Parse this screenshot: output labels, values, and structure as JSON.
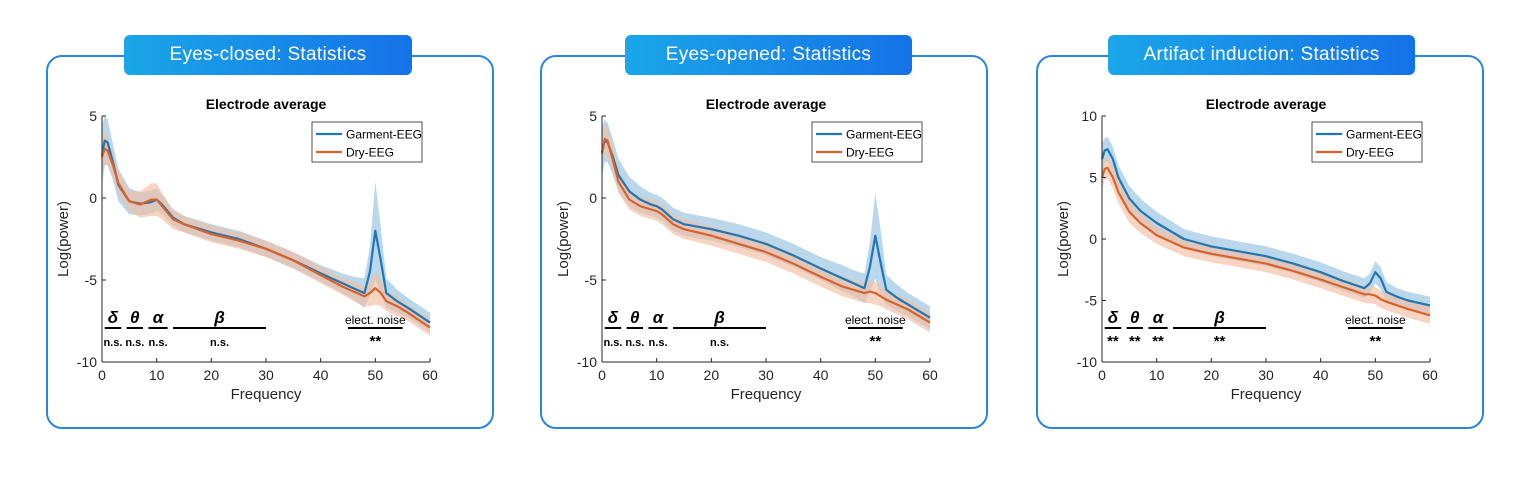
{
  "colors": {
    "garment": "#1f77b4",
    "garment_band": "#a9cde6",
    "dry": "#d9622b",
    "dry_band": "#f3bfa2",
    "banner_start": "#1aa6e8",
    "banner_end": "#1572e8",
    "panel_border": "#2b86d9"
  },
  "chart_data": [
    {
      "type": "line",
      "banner": "Eyes-closed: Statistics",
      "title": "Electrode average",
      "xlabel": "Frequency",
      "ylabel": "Log(power)",
      "xlim": [
        0,
        60
      ],
      "ylim": [
        -10,
        5
      ],
      "xticks": [
        "0",
        "10",
        "20",
        "30",
        "40",
        "50",
        "60"
      ],
      "yticks": [
        "5",
        "0",
        "-5",
        "-10"
      ],
      "ytick_values": [
        5,
        0,
        -5,
        -10
      ],
      "legend": [
        "Garment-EEG",
        "Dry-EEG"
      ],
      "series": [
        {
          "name": "Garment-EEG",
          "x": [
            0,
            0.5,
            1,
            2,
            3,
            5,
            7,
            9,
            10,
            11,
            13,
            15,
            20,
            25,
            30,
            35,
            40,
            44,
            46,
            48,
            49,
            50,
            51,
            52,
            54,
            56,
            60
          ],
          "y": [
            2.6,
            3.5,
            3.4,
            2.2,
            0.8,
            -0.2,
            -0.35,
            -0.25,
            -0.1,
            -0.4,
            -1.2,
            -1.6,
            -2.1,
            -2.5,
            -3.1,
            -3.8,
            -4.6,
            -5.2,
            -5.5,
            -5.8,
            -4.5,
            -2.0,
            -3.8,
            -5.8,
            -6.3,
            -6.7,
            -7.6
          ],
          "band": [
            1.8,
            1.5,
            1.4,
            1.1,
            1.0,
            0.8,
            0.7,
            0.7,
            0.7,
            0.6,
            0.5,
            0.5,
            0.5,
            0.5,
            0.5,
            0.5,
            0.5,
            0.6,
            0.7,
            0.9,
            1.5,
            3.0,
            2.0,
            0.9,
            0.7,
            0.6,
            0.6
          ]
        },
        {
          "name": "Dry-EEG",
          "x": [
            0,
            0.5,
            1,
            2,
            3,
            5,
            7,
            9,
            10,
            11,
            13,
            15,
            20,
            25,
            30,
            35,
            40,
            44,
            46,
            48,
            49,
            50,
            51,
            52,
            54,
            56,
            60
          ],
          "y": [
            2.5,
            3.0,
            2.9,
            2.0,
            0.9,
            -0.2,
            -0.4,
            -0.1,
            -0.1,
            -0.5,
            -1.3,
            -1.6,
            -2.2,
            -2.6,
            -3.1,
            -3.8,
            -4.7,
            -5.4,
            -5.7,
            -6.0,
            -5.8,
            -5.5,
            -5.8,
            -6.3,
            -6.6,
            -7.0,
            -7.9
          ],
          "band": [
            1.0,
            0.9,
            0.9,
            0.7,
            0.7,
            0.6,
            0.8,
            1.0,
            1.0,
            0.8,
            0.6,
            0.5,
            0.5,
            0.5,
            0.5,
            0.5,
            0.5,
            0.5,
            0.6,
            0.6,
            0.8,
            1.0,
            0.8,
            0.6,
            0.6,
            0.5,
            0.5
          ]
        }
      ],
      "band_annotations": [
        {
          "symbol": "δ",
          "x": [
            0.5,
            3.5
          ],
          "sig": "n.s."
        },
        {
          "symbol": "θ",
          "x": [
            4.5,
            7.5
          ],
          "sig": "n.s."
        },
        {
          "symbol": "α",
          "x": [
            8.5,
            12
          ],
          "sig": "n.s."
        },
        {
          "symbol": "β",
          "x": [
            13,
            30
          ],
          "sig": "n.s."
        }
      ],
      "noise_annotation": {
        "label": "elect. noise",
        "x": [
          45,
          55
        ],
        "sig": "**"
      }
    },
    {
      "type": "line",
      "banner": "Eyes-opened: Statistics",
      "title": "Electrode average",
      "xlabel": "Frequency",
      "ylabel": "Log(power)",
      "xlim": [
        0,
        60
      ],
      "ylim": [
        -10,
        5
      ],
      "xticks": [
        "0",
        "10",
        "20",
        "30",
        "40",
        "50",
        "60"
      ],
      "yticks": [
        "5",
        "0",
        "-5",
        "-10"
      ],
      "ytick_values": [
        5,
        0,
        -5,
        -10
      ],
      "legend": [
        "Garment-EEG",
        "Dry-EEG"
      ],
      "series": [
        {
          "name": "Garment-EEG",
          "x": [
            0,
            0.5,
            1,
            2,
            3,
            5,
            7,
            9,
            10,
            11,
            13,
            15,
            20,
            25,
            30,
            35,
            40,
            44,
            46,
            48,
            49,
            50,
            51,
            52,
            54,
            56,
            60
          ],
          "y": [
            2.8,
            3.5,
            3.4,
            2.5,
            1.4,
            0.4,
            -0.1,
            -0.4,
            -0.5,
            -0.7,
            -1.3,
            -1.6,
            -1.9,
            -2.3,
            -2.8,
            -3.5,
            -4.3,
            -4.9,
            -5.2,
            -5.5,
            -4.2,
            -2.3,
            -4.0,
            -5.6,
            -6.1,
            -6.5,
            -7.3
          ],
          "band": [
            1.5,
            1.3,
            1.2,
            1.1,
            1.0,
            0.9,
            0.8,
            0.7,
            0.7,
            0.7,
            0.7,
            0.7,
            0.7,
            0.7,
            0.7,
            0.7,
            0.7,
            0.8,
            0.8,
            0.9,
            1.5,
            2.6,
            2.0,
            0.9,
            0.8,
            0.7,
            0.7
          ]
        },
        {
          "name": "Dry-EEG",
          "x": [
            0,
            0.5,
            1,
            2,
            3,
            5,
            7,
            9,
            10,
            11,
            13,
            15,
            20,
            25,
            30,
            35,
            40,
            44,
            46,
            48,
            49,
            50,
            51,
            52,
            54,
            56,
            60
          ],
          "y": [
            2.7,
            3.6,
            3.5,
            2.3,
            1.0,
            -0.1,
            -0.5,
            -0.7,
            -0.8,
            -1.0,
            -1.6,
            -1.9,
            -2.3,
            -2.8,
            -3.3,
            -4.0,
            -4.8,
            -5.4,
            -5.6,
            -5.8,
            -5.7,
            -5.8,
            -6.0,
            -6.2,
            -6.5,
            -6.8,
            -7.6
          ],
          "band": [
            1.0,
            0.9,
            0.9,
            0.8,
            0.7,
            0.6,
            0.6,
            0.6,
            0.6,
            0.6,
            0.6,
            0.6,
            0.6,
            0.6,
            0.6,
            0.6,
            0.6,
            0.6,
            0.6,
            0.6,
            0.7,
            0.7,
            0.6,
            0.6,
            0.6,
            0.6,
            0.6
          ]
        }
      ],
      "band_annotations": [
        {
          "symbol": "δ",
          "x": [
            0.5,
            3.5
          ],
          "sig": "n.s."
        },
        {
          "symbol": "θ",
          "x": [
            4.5,
            7.5
          ],
          "sig": "n.s."
        },
        {
          "symbol": "α",
          "x": [
            8.5,
            12
          ],
          "sig": "n.s."
        },
        {
          "symbol": "β",
          "x": [
            13,
            30
          ],
          "sig": "n.s."
        }
      ],
      "noise_annotation": {
        "label": "elect. noise",
        "x": [
          45,
          55
        ],
        "sig": "**"
      }
    },
    {
      "type": "line",
      "banner": "Artifact induction: Statistics",
      "title": "Electrode average",
      "xlabel": "Frequency",
      "ylabel": "Log(power)",
      "xlim": [
        0,
        60
      ],
      "ylim": [
        -10,
        10
      ],
      "xticks": [
        "0",
        "10",
        "20",
        "30",
        "40",
        "50",
        "60"
      ],
      "yticks": [
        "10",
        "5",
        "0",
        "-5",
        "-10"
      ],
      "ytick_values": [
        10,
        5,
        0,
        -5,
        -10
      ],
      "legend": [
        "Garment-EEG",
        "Dry-EEG"
      ],
      "series": [
        {
          "name": "Garment-EEG",
          "x": [
            0,
            0.5,
            1,
            2,
            3,
            5,
            7,
            10,
            15,
            20,
            25,
            30,
            35,
            40,
            44,
            46,
            48,
            49,
            50,
            51,
            52,
            54,
            56,
            60
          ],
          "y": [
            6.5,
            7.2,
            7.3,
            6.5,
            5.0,
            3.3,
            2.3,
            1.3,
            0.0,
            -0.6,
            -1.0,
            -1.4,
            -2.0,
            -2.7,
            -3.4,
            -3.7,
            -4.0,
            -3.6,
            -2.7,
            -3.2,
            -4.3,
            -4.7,
            -5.0,
            -5.4
          ],
          "band": [
            1.3,
            1.0,
            1.0,
            1.0,
            1.0,
            1.0,
            1.0,
            0.9,
            0.8,
            0.8,
            0.8,
            0.8,
            0.8,
            0.8,
            0.8,
            0.8,
            0.8,
            0.8,
            0.9,
            0.9,
            0.8,
            0.7,
            0.7,
            0.7
          ]
        },
        {
          "name": "Dry-EEG",
          "x": [
            0,
            0.5,
            1,
            2,
            3,
            5,
            7,
            10,
            15,
            20,
            25,
            30,
            35,
            40,
            44,
            46,
            48,
            49,
            50,
            51,
            52,
            54,
            56,
            60
          ],
          "y": [
            5.0,
            5.7,
            5.8,
            5.0,
            3.8,
            2.2,
            1.3,
            0.3,
            -0.7,
            -1.2,
            -1.6,
            -2.0,
            -2.6,
            -3.3,
            -3.9,
            -4.2,
            -4.5,
            -4.5,
            -4.6,
            -4.9,
            -5.1,
            -5.4,
            -5.7,
            -6.2
          ],
          "band": [
            1.0,
            0.9,
            0.9,
            0.9,
            0.9,
            0.9,
            0.8,
            0.7,
            0.7,
            0.7,
            0.7,
            0.7,
            0.7,
            0.7,
            0.7,
            0.7,
            0.7,
            0.7,
            0.7,
            0.7,
            0.7,
            0.7,
            0.7,
            0.7
          ]
        }
      ],
      "band_annotations": [
        {
          "symbol": "δ",
          "x": [
            0.5,
            3.5
          ],
          "sig": "**"
        },
        {
          "symbol": "θ",
          "x": [
            4.5,
            7.5
          ],
          "sig": "**"
        },
        {
          "symbol": "α",
          "x": [
            8.5,
            12
          ],
          "sig": "**"
        },
        {
          "symbol": "β",
          "x": [
            13,
            30
          ],
          "sig": "**"
        }
      ],
      "noise_annotation": {
        "label": "elect. noise",
        "x": [
          45,
          55
        ],
        "sig": "**"
      }
    }
  ]
}
